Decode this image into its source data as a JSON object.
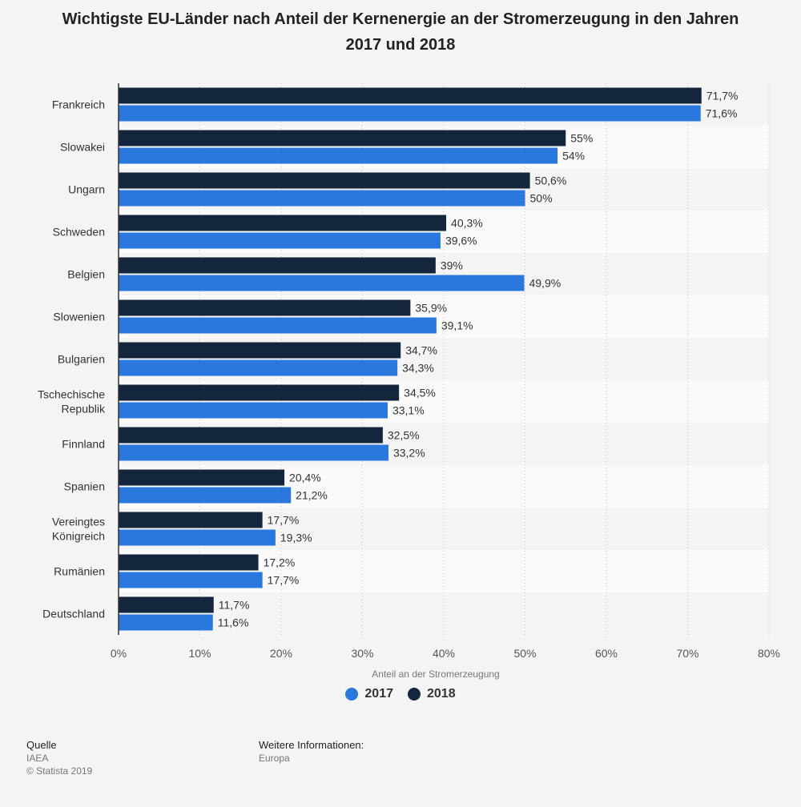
{
  "title": "Wichtigste EU-Länder nach Anteil der Kernenergie an der Stromerzeugung in den Jahren 2017 und 2018",
  "chart_data": {
    "type": "bar",
    "orientation": "horizontal",
    "categories": [
      "Frankreich",
      "Slowakei",
      "Ungarn",
      "Schweden",
      "Belgien",
      "Slowenien",
      "Bulgarien",
      "Tschechische Republik",
      "Finnland",
      "Spanien",
      "Vereingtes Königreich",
      "Rumänien",
      "Deutschland"
    ],
    "series": [
      {
        "name": "2018",
        "color": "#13263d",
        "values": [
          71.7,
          55,
          50.6,
          40.3,
          39,
          35.9,
          34.7,
          34.5,
          32.5,
          20.4,
          17.7,
          17.2,
          11.7
        ],
        "labels": [
          "71,7%",
          "55%",
          "50,6%",
          "40,3%",
          "39%",
          "35,9%",
          "34,7%",
          "34,5%",
          "32,5%",
          "20,4%",
          "17,7%",
          "17,2%",
          "11,7%"
        ]
      },
      {
        "name": "2017",
        "color": "#2a78dd",
        "values": [
          71.6,
          54,
          50,
          39.6,
          49.9,
          39.1,
          34.3,
          33.1,
          33.2,
          21.2,
          19.3,
          17.7,
          11.6
        ],
        "labels": [
          "71,6%",
          "54%",
          "50%",
          "39,6%",
          "49,9%",
          "39,1%",
          "34,3%",
          "33,1%",
          "33,2%",
          "21,2%",
          "19,3%",
          "17,7%",
          "11,6%"
        ]
      }
    ],
    "xlabel": "Anteil an der Stromerzeugung",
    "xlim": [
      0,
      80
    ],
    "ticks": [
      "0%",
      "10%",
      "20%",
      "30%",
      "40%",
      "50%",
      "60%",
      "70%",
      "80%"
    ],
    "grid": true,
    "legend_placement": "bottom"
  },
  "legend": [
    {
      "label": "2017",
      "color": "#2a78dd"
    },
    {
      "label": "2018",
      "color": "#13263d"
    }
  ],
  "footer": {
    "source_heading": "Quelle",
    "source_lines": [
      "IAEA",
      "© Statista 2019"
    ],
    "info_heading": "Weitere Informationen:",
    "info_lines": [
      "Europa"
    ]
  }
}
